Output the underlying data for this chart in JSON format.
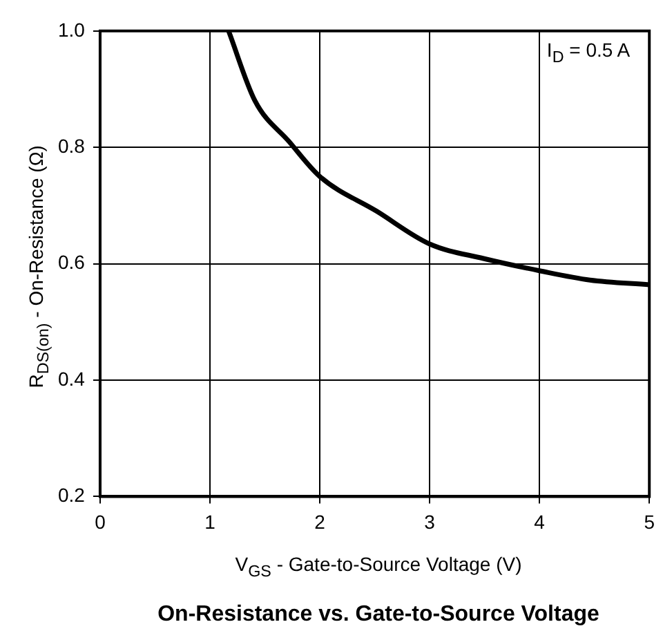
{
  "chart_data": {
    "type": "line",
    "title": "On-Resistance vs. Gate-to-Source Voltage",
    "xlabel": "V$_{GS}$ - Gate-to-Source Voltage (V)",
    "ylabel": "R$_{DS(on)}$ - On-Resistance (Ω)",
    "annotations": [
      "I$_{D}$ = 0.5 A"
    ],
    "series": [
      {
        "color": "#000000",
        "x": [
          1.17,
          1.41,
          1.72,
          2.0,
          2.52,
          3.0,
          3.49,
          4.0,
          4.46,
          5.0
        ],
        "values": [
          1.0,
          0.88,
          0.81,
          0.75,
          0.69,
          0.634,
          0.609,
          0.588,
          0.572,
          0.564
        ]
      }
    ],
    "xlim": [
      0,
      5
    ],
    "xticks": [
      0,
      1,
      2,
      3,
      4,
      5
    ],
    "ylim": [
      0.2,
      1.0
    ],
    "yticks": [
      0.2,
      0.4,
      0.6,
      0.8,
      {
        "value": 1.0,
        "label": "1.0"
      }
    ],
    "grid": true,
    "legend": false,
    "marker": "none",
    "line_style": "solid"
  }
}
